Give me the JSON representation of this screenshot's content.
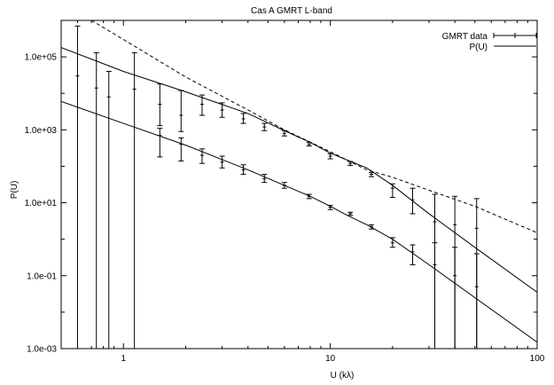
{
  "chart_data": {
    "type": "scatter",
    "title": "Cas A GMRT L-band",
    "xlabel": "U (kλ)",
    "ylabel": "P(U)",
    "x_scale": "log",
    "y_scale": "log",
    "xlim": [
      0.5,
      100
    ],
    "ylim": [
      0.001,
      1000000
    ],
    "x_ticks": [
      {
        "value": 1,
        "label": "1"
      },
      {
        "value": 10,
        "label": "10"
      },
      {
        "value": 100,
        "label": "100"
      }
    ],
    "y_ticks": [
      {
        "value": 0.001,
        "label": "1.0e-03"
      },
      {
        "value": 0.1,
        "label": "1.0e-01"
      },
      {
        "value": 10,
        "label": "1.0e+01"
      },
      {
        "value": 1000,
        "label": "1.0e+03"
      },
      {
        "value": 100000,
        "label": "1.0e+05"
      }
    ],
    "grid": false,
    "legend": {
      "position": "top-right",
      "entries": [
        "GMRT data",
        "P(U)"
      ]
    },
    "series": [
      {
        "name": "GMRT data",
        "kind": "points-with-errorbars",
        "points": [
          {
            "x": 0.6,
            "y": 30000,
            "lo": 0.0008,
            "hi": 700000
          },
          {
            "x": 0.74,
            "y": 14000,
            "lo": 0.0008,
            "hi": 130000
          },
          {
            "x": 0.85,
            "y": 8000,
            "lo": 0.0008,
            "hi": 40000
          },
          {
            "x": 1.13,
            "y": 13000,
            "lo": 0.0008,
            "hi": 130000
          },
          {
            "x": 1.5,
            "y": 5000,
            "lo": 1300,
            "hi": 18000
          },
          {
            "x": 1.9,
            "y": 2500,
            "lo": 900,
            "hi": 12000
          },
          {
            "x": 2.4,
            "y": 5000,
            "lo": 2500,
            "hi": 9000
          },
          {
            "x": 3.0,
            "y": 3500,
            "lo": 2200,
            "hi": 5500
          },
          {
            "x": 3.8,
            "y": 2000,
            "lo": 1500,
            "hi": 2800
          },
          {
            "x": 4.8,
            "y": 1200,
            "lo": 950,
            "hi": 1500
          },
          {
            "x": 6.0,
            "y": 800,
            "lo": 680,
            "hi": 950
          },
          {
            "x": 7.9,
            "y": 400,
            "lo": 360,
            "hi": 450
          },
          {
            "x": 10.0,
            "y": 190,
            "lo": 160,
            "hi": 220
          },
          {
            "x": 12.5,
            "y": 120,
            "lo": 105,
            "hi": 135
          },
          {
            "x": 15.8,
            "y": 60,
            "lo": 52,
            "hi": 68
          },
          {
            "x": 20.0,
            "y": 25,
            "lo": 14,
            "hi": 33
          },
          {
            "x": 25.0,
            "y": 12,
            "lo": 5,
            "hi": 25
          },
          {
            "x": 32.0,
            "y": 3,
            "lo": 0.0008,
            "hi": 17
          },
          {
            "x": 40.0,
            "y": 2.5,
            "lo": 0.0008,
            "hi": 15
          },
          {
            "x": 51.0,
            "y": 2,
            "lo": 0.0008,
            "hi": 13
          },
          {
            "x": 1.5,
            "y": 700,
            "lo": 180,
            "hi": 1100
          },
          {
            "x": 1.9,
            "y": 400,
            "lo": 140,
            "hi": 600
          },
          {
            "x": 2.4,
            "y": 200,
            "lo": 120,
            "hi": 300
          },
          {
            "x": 3.0,
            "y": 130,
            "lo": 90,
            "hi": 190
          },
          {
            "x": 3.8,
            "y": 80,
            "lo": 60,
            "hi": 110
          },
          {
            "x": 4.8,
            "y": 45,
            "lo": 36,
            "hi": 60
          },
          {
            "x": 6.0,
            "y": 30,
            "lo": 25,
            "hi": 36
          },
          {
            "x": 7.9,
            "y": 15,
            "lo": 13,
            "hi": 17
          },
          {
            "x": 10.0,
            "y": 7.5,
            "lo": 6.5,
            "hi": 8.5
          },
          {
            "x": 12.5,
            "y": 5,
            "lo": 4.5,
            "hi": 5.5
          },
          {
            "x": 15.8,
            "y": 2.2,
            "lo": 1.9,
            "hi": 2.5
          },
          {
            "x": 20.0,
            "y": 0.8,
            "lo": 0.6,
            "hi": 1.1
          },
          {
            "x": 25.0,
            "y": 0.45,
            "lo": 0.2,
            "hi": 0.7
          },
          {
            "x": 32.0,
            "y": 0.2,
            "lo": 0.0008,
            "hi": 0.8
          },
          {
            "x": 40.0,
            "y": 0.1,
            "lo": 0.0008,
            "hi": 0.6
          },
          {
            "x": 51.0,
            "y": 0.05,
            "lo": 0.0008,
            "hi": 0.4
          }
        ]
      },
      {
        "name": "P(U)",
        "kind": "line",
        "style": "solid",
        "curves": [
          [
            [
              0.5,
              180000
            ],
            [
              1,
              40000
            ],
            [
              2,
              11000
            ],
            [
              4,
              2800
            ],
            [
              6,
              950
            ],
            [
              8,
              450
            ],
            [
              10,
              230
            ],
            [
              12,
              150
            ],
            [
              15,
              90
            ],
            [
              20,
              30
            ],
            [
              30,
              5
            ],
            [
              50,
              0.6
            ],
            [
              100,
              0.035
            ]
          ],
          [
            [
              0.5,
              6000
            ],
            [
              1,
              1500
            ],
            [
              2,
              380
            ],
            [
              4,
              80
            ],
            [
              6,
              30
            ],
            [
              8,
              15
            ],
            [
              10,
              8
            ],
            [
              12,
              4.6
            ],
            [
              15,
              2.5
            ],
            [
              20,
              1.0
            ],
            [
              30,
              0.2
            ],
            [
              50,
              0.025
            ],
            [
              100,
              0.0015
            ]
          ]
        ]
      },
      {
        "kind": "line",
        "style": "dashed",
        "curves": [
          [
            [
              0.7,
              1000000
            ],
            [
              1,
              300000
            ],
            [
              2,
              28000
            ],
            [
              4,
              3500
            ],
            [
              6,
              1000
            ],
            [
              10,
              250
            ],
            [
              15,
              80
            ],
            [
              20,
              50
            ],
            [
              30,
              22
            ],
            [
              50,
              8
            ],
            [
              100,
              1.5
            ]
          ]
        ]
      }
    ]
  }
}
